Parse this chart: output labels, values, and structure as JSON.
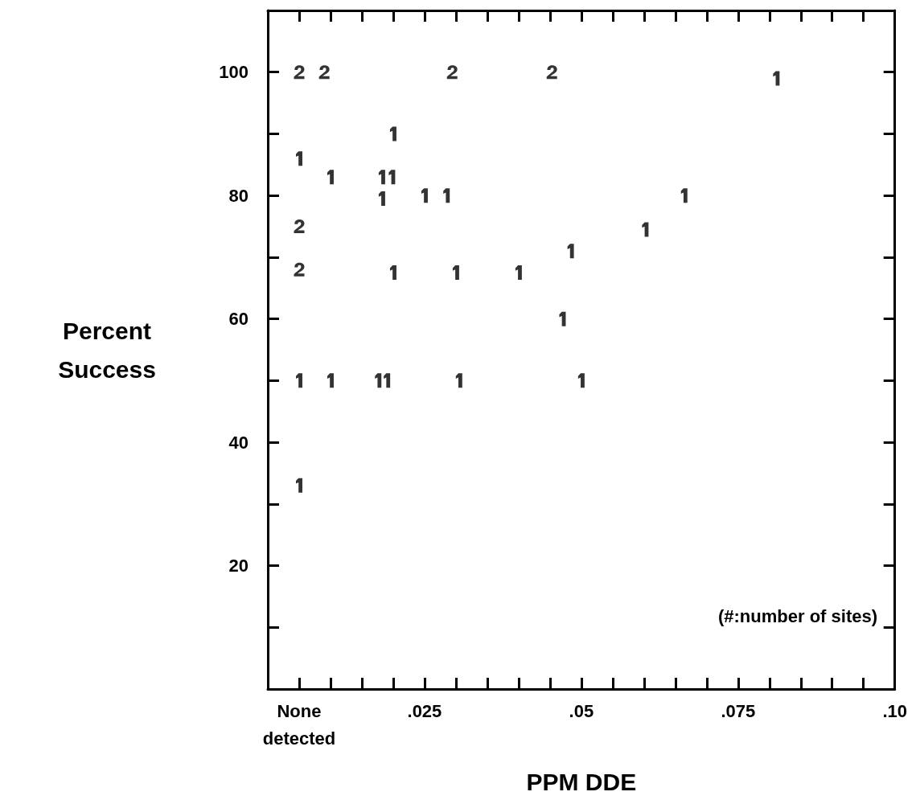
{
  "chart_data": {
    "type": "scatter",
    "xlabel": "PPM DDE",
    "ylabel": "Percent\nSuccess",
    "annotations": [
      "(#:number of sites)"
    ],
    "series": [
      {
        "color": "#000000",
        "x": [
          0.0811,
          0.02,
          0.005,
          0.01,
          0.0182,
          0.0198,
          0.0182,
          0.025,
          0.0285,
          0.0664,
          0.0602,
          0.0483,
          0.02,
          0.03,
          0.04,
          0.047,
          0.005,
          0.01,
          0.0176,
          0.019,
          0.0305,
          0.05,
          0.005
        ],
        "values": [
          99,
          90,
          86,
          83,
          83,
          83,
          79.5,
          80,
          80,
          80,
          74.5,
          71,
          67.5,
          67.5,
          67.5,
          60,
          50,
          50,
          50,
          50,
          50,
          50,
          33
        ]
      },
      {
        "color": "#000000",
        "x": [
          0.005,
          0.009,
          0.0294,
          0.0453,
          0.005,
          0.005
        ],
        "values": [
          100,
          100,
          100,
          100,
          75,
          68
        ]
      }
    ],
    "grid": false,
    "xlim": [
      0,
      0.1
    ],
    "xticks": [
      {
        "value": 0.005,
        "label": "None\ndetected"
      },
      {
        "value": 0.01,
        "label": null
      },
      {
        "value": 0.015,
        "label": null
      },
      {
        "value": 0.02,
        "label": null
      },
      {
        "value": 0.025,
        "label": ".025"
      },
      {
        "value": 0.03,
        "label": null
      },
      {
        "value": 0.035,
        "label": null
      },
      {
        "value": 0.04,
        "label": null
      },
      {
        "value": 0.045,
        "label": null
      },
      {
        "value": 0.05,
        "label": ".05"
      },
      {
        "value": 0.055,
        "label": null
      },
      {
        "value": 0.06,
        "label": null
      },
      {
        "value": 0.065,
        "label": null
      },
      {
        "value": 0.07,
        "label": null
      },
      {
        "value": 0.075,
        "label": ".075"
      },
      {
        "value": 0.08,
        "label": null
      },
      {
        "value": 0.085,
        "label": null
      },
      {
        "value": 0.09,
        "label": null
      },
      {
        "value": 0.095,
        "label": null
      },
      {
        "value": 0.1,
        "label": ".10"
      }
    ],
    "ylim": [
      0,
      110
    ],
    "yticks": [
      {
        "value": 10,
        "label": null
      },
      20,
      {
        "value": 30,
        "label": null
      },
      40,
      {
        "value": 50,
        "label": null
      },
      60,
      {
        "value": 70,
        "label": null
      },
      80,
      {
        "value": 90,
        "label": null
      },
      100
    ]
  }
}
